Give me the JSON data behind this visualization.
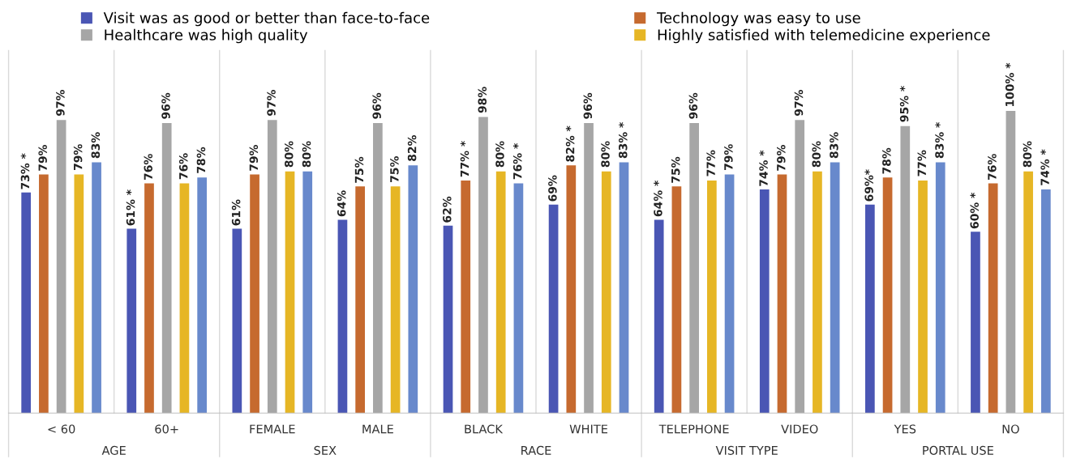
{
  "chart_data": {
    "type": "bar",
    "categories": [
      "< 60",
      "60+",
      "FEMALE",
      "MALE",
      "BLACK",
      "WHITE",
      "TELEPHONE",
      "VIDEO",
      "YES",
      "NO"
    ],
    "series": [
      {
        "name": "Visit was as good or better than face-to-face",
        "color": "#4a56b4",
        "values": [
          73,
          61,
          61,
          64,
          62,
          69,
          64,
          74,
          69,
          60
        ],
        "value_labels": [
          "73% *",
          "61% *",
          "61%",
          "64%",
          "62%",
          "69%",
          "64% *",
          "74% *",
          "69%*",
          "60% *"
        ]
      },
      {
        "name": "Technology was easy to use",
        "color": "#c66a2f",
        "values": [
          79,
          76,
          79,
          75,
          77,
          82,
          75,
          79,
          78,
          76
        ],
        "value_labels": [
          "79%",
          "76%",
          "79%",
          "75%",
          "77% *",
          "82% *",
          "75%",
          "79%",
          "78%",
          "76%"
        ]
      },
      {
        "name": "Healthcare was high quality",
        "color": "#a6a6a6",
        "values": [
          97,
          96,
          97,
          96,
          98,
          96,
          96,
          97,
          95,
          100
        ],
        "value_labels": [
          "97%",
          "96%",
          "97%",
          "96%",
          "98%",
          "96%",
          "96%",
          "97%",
          "95% *",
          "100% *"
        ]
      },
      {
        "name": "Highly satisfied with telemedicine experience",
        "color": "#e6b625",
        "values": [
          79,
          76,
          80,
          75,
          80,
          80,
          77,
          80,
          77,
          80
        ],
        "value_labels": [
          "79%",
          "76%",
          "80%",
          "75%",
          "80%",
          "80%",
          "77%",
          "80%",
          "77%",
          "80%"
        ]
      },
      {
        "color": "#6889cc",
        "values": [
          83,
          78,
          80,
          82,
          76,
          83,
          79,
          83,
          83,
          74
        ],
        "value_labels": [
          "83%",
          "78%",
          "80%",
          "82%",
          "76% *",
          "83% *",
          "79%",
          "83%",
          "83% *",
          "74% *"
        ]
      }
    ],
    "annotations": [
      "AGE",
      "SEX",
      "RACE",
      "VISIT TYPE",
      "PORTAL USE"
    ],
    "legend": "top",
    "grid": false
  }
}
